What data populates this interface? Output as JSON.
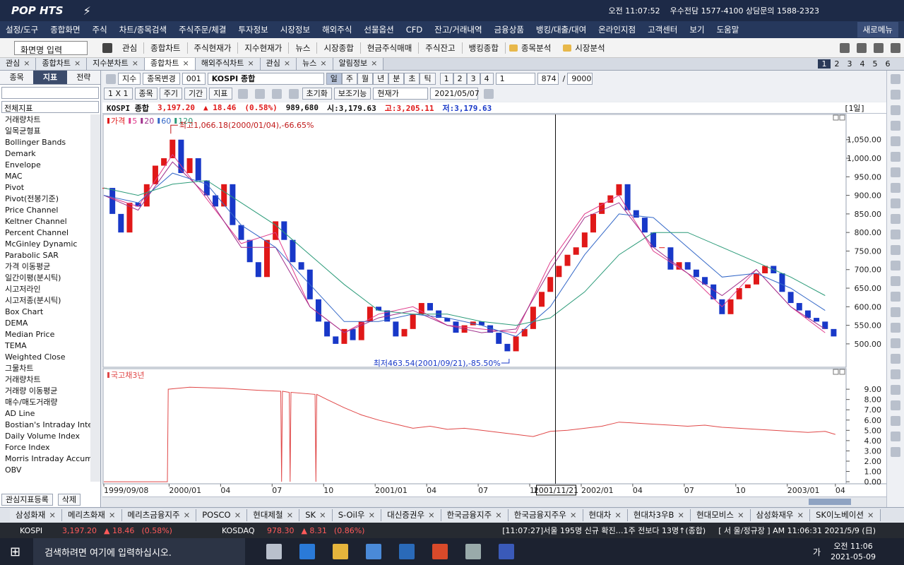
{
  "title_bar": {
    "logo": "POP HTS",
    "clock": "오전 11:07:52",
    "phone": "우수전담 1577-4100 상담문의 1588-2323"
  },
  "menu": [
    "설정/도구",
    "종합화면",
    "주식",
    "차트/종목검색",
    "주식주문/체결",
    "투자정보",
    "시장정보",
    "해외주식",
    "선물옵션",
    "CFD",
    "잔고/거래내역",
    "금융상품",
    "뱅킹/대출/대여",
    "온라인지점",
    "고객센터",
    "보기",
    "도움말"
  ],
  "new_menu": "새로메뉴",
  "toolbar": {
    "search_placeholder": "화면명 입력",
    "items": [
      "관심",
      "종합차트",
      "주식현재가",
      "지수현재가",
      "뉴스",
      "시장종합",
      "현금주식매매",
      "주식잔고",
      "뱅킹종합"
    ],
    "folders": [
      "종목분석",
      "시장분석"
    ]
  },
  "tabs": {
    "items": [
      "관심",
      "종합차트",
      "지수분차트",
      "종합차트",
      "해외주식차트",
      "관심",
      "뉴스",
      "알림정보"
    ],
    "active": 3,
    "pages": [
      "1",
      "2",
      "3",
      "4",
      "5",
      "6"
    ]
  },
  "side_panel": {
    "tabs": [
      "종목",
      "지표",
      "전략"
    ],
    "active": 1,
    "filter": "전체지표",
    "items": [
      "거래량차트",
      "일목균형표",
      "Bollinger Bands",
      "Demark",
      "Envelope",
      "MAC",
      "Pivot",
      "Pivot(전봉기준)",
      "Price Channel",
      "Keltner Channel",
      "Percent Channel",
      "McGinley Dynamic",
      "Parabolic SAR",
      "가격 이동평균",
      "일간이평(분시틱)",
      "시고저라인",
      "시고저종(분시틱)",
      "Box Chart",
      "DEMA",
      "Median Price",
      "TEMA",
      "Weighted Close",
      "그물차트",
      "거래량차트",
      "거래량 이동평균",
      "매수/매도거래량",
      "AD Line",
      "Bostian's Intraday Intens",
      "Daily Volume Index",
      "Force Index",
      "Morris Intraday Accumu",
      "OBV"
    ],
    "buttons": [
      "관심지표등록",
      "삭제"
    ]
  },
  "chart_toolbar": {
    "row1": [
      "지수",
      "종목변경",
      "001",
      "KOSPI 종합"
    ],
    "periods": [
      "일",
      "주",
      "월",
      "년",
      "분",
      "초",
      "틱"
    ],
    "numbers": [
      "1",
      "2",
      "3",
      "4"
    ],
    "count": "1",
    "bars": "874",
    "max": "9000",
    "row2": [
      "1 X 1",
      "종목",
      "주기",
      "기간",
      "지표"
    ],
    "reset": "초기화",
    "aux": "보조기능",
    "price_mode": "현재가",
    "date": "2021/05/07"
  },
  "info": {
    "name": "KOSPI 종합",
    "price": "3,197.20",
    "change": "▲ 18.46",
    "rate": "(0.58%)",
    "volume": "989,680",
    "open": "시:3,179.63",
    "high": "고:3,205.11",
    "low": "저:3,179.63",
    "period": "[1일]"
  },
  "chart_data": [
    {
      "type": "candlestick",
      "xlim": [
        0,
        43.1
      ],
      "ylim": [
        437,
        1118
      ],
      "up_color": "#e01818",
      "down_color": "#1838c8",
      "yticks": [
        {
          "value": 500,
          "label": "500.00"
        },
        {
          "value": 550,
          "label": "550.00"
        },
        {
          "value": 600,
          "label": "600.00"
        },
        {
          "value": 650,
          "label": "650.00"
        },
        {
          "value": 700,
          "label": "700.00"
        },
        {
          "value": 750,
          "label": "750.00"
        },
        {
          "value": 800,
          "label": "800.00"
        },
        {
          "value": 850,
          "label": "850.00"
        },
        {
          "value": 900,
          "label": "900.00"
        },
        {
          "value": 950,
          "label": "950.00"
        },
        {
          "value": 1000,
          "label": "1,000.00"
        },
        {
          "value": 1050,
          "label": "1,050.00"
        }
      ],
      "series": [
        {
          "name": "가격",
          "color": "#e01818",
          "x": [
            0,
            0.5,
            1,
            1.5,
            2,
            2.5,
            3,
            3.5,
            4,
            4.5,
            5,
            5.5,
            6,
            6.5,
            7,
            7.5,
            8,
            8.5,
            9,
            9.5,
            10,
            10.5,
            11,
            11.5,
            12,
            12.5,
            13,
            13.5,
            14,
            14.5,
            15,
            15.5,
            16,
            16.5,
            17,
            17.5,
            18,
            18.5,
            19,
            19.5,
            20,
            20.5,
            21,
            21.5,
            22,
            22.5,
            23,
            23.5,
            24,
            24.5,
            25,
            25.5,
            26,
            26.5,
            27,
            27.5,
            28,
            28.5,
            29,
            29.5,
            30,
            30.5,
            31,
            31.5,
            32,
            32.5,
            33,
            33.5,
            34,
            34.5,
            35,
            35.5,
            36,
            36.5,
            37,
            37.5,
            38,
            38.5,
            39,
            39.5,
            40,
            40.5,
            41,
            41.5,
            42,
            42.5
          ],
          "values": [
            920,
            850,
            800,
            880,
            870,
            930,
            980,
            1000,
            1050,
            960,
            1000,
            940,
            900,
            870,
            930,
            820,
            780,
            720,
            680,
            780,
            830,
            780,
            720,
            700,
            620,
            560,
            520,
            500,
            540,
            510,
            560,
            600,
            590,
            560,
            520,
            540,
            580,
            610,
            590,
            570,
            560,
            530,
            550,
            560,
            550,
            530,
            500,
            480,
            520,
            540,
            600,
            640,
            680,
            710,
            740,
            760,
            800,
            850,
            880,
            900,
            930,
            860,
            840,
            800,
            760,
            760,
            700,
            720,
            700,
            680,
            660,
            620,
            580,
            620,
            650,
            660,
            690,
            710,
            690,
            640,
            610,
            590,
            570,
            560,
            540,
            520
          ]
        },
        {
          "name": "5",
          "color": "#e03c8c",
          "x": [
            0,
            2,
            4,
            6,
            8,
            10,
            12,
            14,
            16,
            18,
            20,
            22,
            24,
            26,
            28,
            30,
            32,
            34,
            36,
            38,
            40,
            42
          ],
          "values": [
            900,
            870,
            1010,
            890,
            770,
            800,
            600,
            530,
            580,
            600,
            550,
            540,
            530,
            720,
            850,
            900,
            750,
            690,
            600,
            700,
            600,
            530
          ]
        },
        {
          "name": "20",
          "color": "#a0308c",
          "x": [
            0,
            2,
            4,
            6,
            8,
            10,
            12,
            14,
            16,
            18,
            20,
            22,
            24,
            26,
            28,
            30,
            32,
            34,
            36,
            38,
            40,
            42
          ],
          "values": [
            900,
            860,
            990,
            900,
            760,
            760,
            600,
            530,
            570,
            590,
            550,
            530,
            540,
            700,
            840,
            880,
            760,
            690,
            630,
            700,
            600,
            540
          ]
        },
        {
          "name": "60",
          "color": "#3468c8",
          "x": [
            0,
            2,
            4,
            6,
            8,
            10,
            12,
            14,
            16,
            18,
            20,
            22,
            24,
            26,
            28,
            30,
            32,
            34,
            36,
            38,
            40,
            42
          ],
          "values": [
            900,
            880,
            960,
            930,
            820,
            760,
            660,
            560,
            560,
            580,
            570,
            550,
            520,
            600,
            740,
            850,
            840,
            760,
            680,
            690,
            650,
            590
          ]
        },
        {
          "name": "120",
          "color": "#2a9a78",
          "x": [
            0,
            2,
            4,
            6,
            8,
            10,
            12,
            14,
            16,
            18,
            20,
            22,
            24,
            26,
            28,
            30,
            32,
            34,
            36,
            38,
            40,
            42
          ],
          "values": [
            920,
            900,
            930,
            940,
            880,
            820,
            740,
            660,
            590,
            580,
            580,
            560,
            550,
            570,
            640,
            740,
            800,
            800,
            760,
            720,
            680,
            630
          ]
        }
      ],
      "annotations": [
        {
          "text": "최고1,066.18(2000/01/04),-66.65%",
          "x": 3.9,
          "y": 1066.18
        },
        {
          "text": "최저463.54(2001/09/21),-85.50%",
          "x": 23.6,
          "y": 463.54
        }
      ]
    },
    {
      "type": "line",
      "xlim": [
        0,
        43.1
      ],
      "ylim": [
        -0.2,
        11
      ],
      "yticks": [
        {
          "value": 0,
          "label": "0.00"
        },
        {
          "value": 1,
          "label": "1.00"
        },
        {
          "value": 2,
          "label": "2.00"
        },
        {
          "value": 3,
          "label": "3.00"
        },
        {
          "value": 4,
          "label": "4.00"
        },
        {
          "value": 5,
          "label": "5.00"
        },
        {
          "value": 6,
          "label": "6.00"
        },
        {
          "value": 7,
          "label": "7.00"
        },
        {
          "value": 8,
          "label": "8.00"
        },
        {
          "value": 9,
          "label": "9.00"
        }
      ],
      "series": [
        {
          "name": "국고채3년",
          "color": "#e04848",
          "x": [
            0,
            3.7,
            3.75,
            5,
            7,
            9,
            10.3,
            10.35,
            10.4,
            10.8,
            10.85,
            10.9,
            12.3,
            12.35,
            12.4,
            13,
            14,
            15,
            16,
            17,
            18,
            19,
            20,
            21,
            22,
            23,
            24,
            25,
            26,
            27,
            28,
            29,
            30,
            31,
            32,
            33,
            34,
            35,
            36,
            37,
            38,
            39,
            40,
            41,
            42,
            42.6
          ],
          "values": [
            0,
            0,
            9.0,
            9.2,
            9.1,
            8.9,
            8.8,
            0,
            8.8,
            8.7,
            0,
            8.7,
            8.5,
            0,
            8.5,
            8.0,
            7.2,
            6.5,
            6.0,
            5.6,
            5.2,
            5.4,
            5.1,
            5.2,
            5.0,
            4.8,
            4.6,
            4.4,
            4.9,
            5.0,
            5.2,
            5.4,
            5.8,
            5.7,
            5.6,
            5.5,
            5.4,
            5.5,
            5.3,
            5.2,
            5.1,
            5.0,
            4.9,
            4.8,
            4.9,
            4.6
          ]
        }
      ],
      "xticks": [
        {
          "value": 0,
          "label": "1999/09/08"
        },
        {
          "value": 3.8,
          "label": "2000/01"
        },
        {
          "value": 6.8,
          "label": "04"
        },
        {
          "value": 9.8,
          "label": "07"
        },
        {
          "value": 12.8,
          "label": "10"
        },
        {
          "value": 15.8,
          "label": "2001/01"
        },
        {
          "value": 18.8,
          "label": "04"
        },
        {
          "value": 21.8,
          "label": "07"
        },
        {
          "value": 24.8,
          "label": "10"
        },
        {
          "value": 27.8,
          "label": "2002/01"
        },
        {
          "value": 30.8,
          "label": "04"
        },
        {
          "value": 33.8,
          "label": "07"
        },
        {
          "value": 36.8,
          "label": "10"
        },
        {
          "value": 39.8,
          "label": "2003/01"
        },
        {
          "value": 42.6,
          "label": "04"
        }
      ],
      "cursor": {
        "x": 26.3,
        "label": "2001/11/21"
      }
    }
  ],
  "stock_tabs": [
    "삼성화재",
    "메리츠화재",
    "메리츠금융지주",
    "POSCO",
    "현대제철",
    "SK",
    "S-Oil우",
    "대신증권우",
    "한국금융지주",
    "한국금융지주우",
    "현대차",
    "현대차3우B",
    "현대모비스",
    "삼성화재우",
    "SK이노베이션"
  ],
  "status": {
    "kospi_label": "KOSPI",
    "kospi": "3,197.20",
    "kospi_change": "▲ 18.46",
    "kospi_rate": "(0.58%)",
    "kosdaq_label": "KOSDAQ",
    "kosdaq": "978.30",
    "kosdaq_change": "▲ 8.31",
    "kosdaq_rate": "(0.86%)",
    "news": "[11:07:27]서울 195명 신규 확진…1주 전보다 13명↑(종합)",
    "market": "[ 서  울/정규장 ] AM 11:06:31  2021/5/9 (日)"
  },
  "taskbar": {
    "search": "검색하려면 여기에 입력하십시오.",
    "lang": "가",
    "time": "오전 11:06",
    "date": "2021-05-09"
  }
}
